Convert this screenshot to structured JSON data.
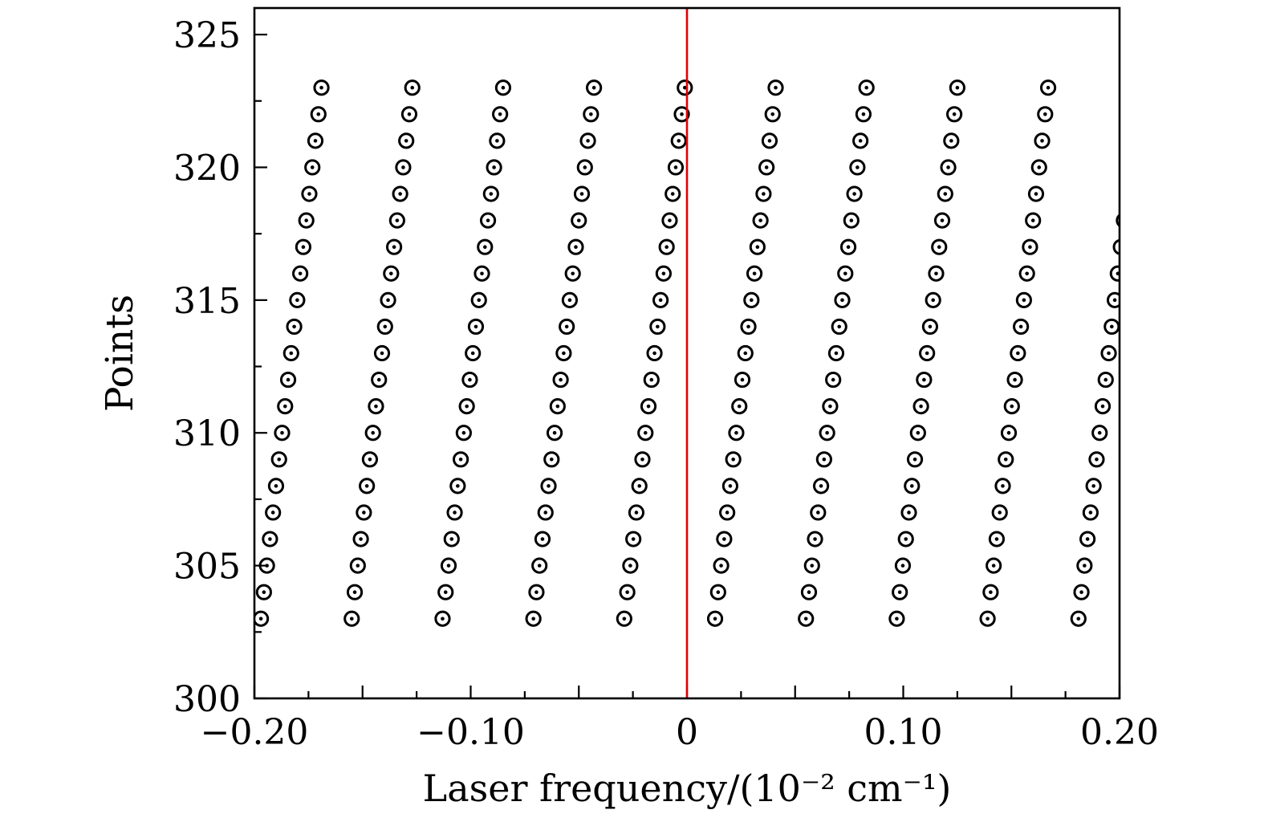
{
  "chart_data": {
    "type": "scatter",
    "xlabel": "Laser frequency/(10⁻² cm⁻¹)",
    "ylabel": "Points",
    "xlim": [
      -0.2,
      0.2
    ],
    "ylim": [
      300,
      326
    ],
    "xticks": [
      {
        "value": -0.2,
        "label": "−0.20"
      },
      {
        "value": -0.1,
        "label": "−0.10"
      },
      {
        "value": 0,
        "label": "0"
      },
      {
        "value": 0.1,
        "label": "0.10"
      },
      {
        "value": 0.2,
        "label": "0.20"
      }
    ],
    "yticks": [
      {
        "value": 300,
        "label": "300"
      },
      {
        "value": 305,
        "label": "305"
      },
      {
        "value": 310,
        "label": "310"
      },
      {
        "value": 315,
        "label": "315"
      },
      {
        "value": 320,
        "label": "320"
      },
      {
        "value": 325,
        "label": "325"
      }
    ],
    "grid": false,
    "marker": "circle-dot",
    "marker_color": "#000000",
    "reference_line": {
      "x": 0,
      "color": "#e00000"
    },
    "series": [
      {
        "x": [
          -0.197,
          -0.1956,
          -0.1942,
          -0.1928,
          -0.1914,
          -0.19,
          -0.1886,
          -0.1872,
          -0.1858,
          -0.1844,
          -0.183,
          -0.1816,
          -0.1802,
          -0.1788,
          -0.1774,
          -0.176,
          -0.1746,
          -0.1732,
          -0.1718,
          -0.1704,
          -0.169
        ],
        "y": [
          303,
          304,
          305,
          306,
          307,
          308,
          309,
          310,
          311,
          312,
          313,
          314,
          315,
          316,
          317,
          318,
          319,
          320,
          321,
          322,
          323
        ]
      },
      {
        "x": [
          -0.155,
          -0.1536,
          -0.1522,
          -0.1508,
          -0.1494,
          -0.148,
          -0.1466,
          -0.1452,
          -0.1438,
          -0.1424,
          -0.141,
          -0.1396,
          -0.1382,
          -0.1368,
          -0.1354,
          -0.134,
          -0.1326,
          -0.1312,
          -0.1298,
          -0.1284,
          -0.127
        ],
        "y": [
          303,
          304,
          305,
          306,
          307,
          308,
          309,
          310,
          311,
          312,
          313,
          314,
          315,
          316,
          317,
          318,
          319,
          320,
          321,
          322,
          323
        ]
      },
      {
        "x": [
          -0.113,
          -0.1116,
          -0.1102,
          -0.1088,
          -0.1074,
          -0.106,
          -0.1046,
          -0.1032,
          -0.1018,
          -0.1004,
          -0.099,
          -0.0976,
          -0.0962,
          -0.0948,
          -0.0934,
          -0.092,
          -0.0906,
          -0.0892,
          -0.0878,
          -0.0864,
          -0.085
        ],
        "y": [
          303,
          304,
          305,
          306,
          307,
          308,
          309,
          310,
          311,
          312,
          313,
          314,
          315,
          316,
          317,
          318,
          319,
          320,
          321,
          322,
          323
        ]
      },
      {
        "x": [
          -0.071,
          -0.0696,
          -0.0682,
          -0.0668,
          -0.0654,
          -0.064,
          -0.0626,
          -0.0612,
          -0.0598,
          -0.0584,
          -0.057,
          -0.0556,
          -0.0542,
          -0.0528,
          -0.0514,
          -0.05,
          -0.0486,
          -0.0472,
          -0.0458,
          -0.0444,
          -0.043
        ],
        "y": [
          303,
          304,
          305,
          306,
          307,
          308,
          309,
          310,
          311,
          312,
          313,
          314,
          315,
          316,
          317,
          318,
          319,
          320,
          321,
          322,
          323
        ]
      },
      {
        "x": [
          -0.029,
          -0.0276,
          -0.0262,
          -0.0248,
          -0.0234,
          -0.022,
          -0.0206,
          -0.0192,
          -0.0178,
          -0.0164,
          -0.015,
          -0.0136,
          -0.0122,
          -0.0108,
          -0.0094,
          -0.008,
          -0.0066,
          -0.0052,
          -0.0038,
          -0.0024,
          -0.001
        ],
        "y": [
          303,
          304,
          305,
          306,
          307,
          308,
          309,
          310,
          311,
          312,
          313,
          314,
          315,
          316,
          317,
          318,
          319,
          320,
          321,
          322,
          323
        ]
      },
      {
        "x": [
          0.013,
          0.0144,
          0.0158,
          0.0172,
          0.0186,
          0.02,
          0.0214,
          0.0228,
          0.0242,
          0.0256,
          0.027,
          0.0284,
          0.0298,
          0.0312,
          0.0326,
          0.034,
          0.0354,
          0.0368,
          0.0382,
          0.0396,
          0.041
        ],
        "y": [
          303,
          304,
          305,
          306,
          307,
          308,
          309,
          310,
          311,
          312,
          313,
          314,
          315,
          316,
          317,
          318,
          319,
          320,
          321,
          322,
          323
        ]
      },
      {
        "x": [
          0.055,
          0.0564,
          0.0578,
          0.0592,
          0.0606,
          0.062,
          0.0634,
          0.0648,
          0.0662,
          0.0676,
          0.069,
          0.0704,
          0.0718,
          0.0732,
          0.0746,
          0.076,
          0.0774,
          0.0788,
          0.0802,
          0.0816,
          0.083
        ],
        "y": [
          303,
          304,
          305,
          306,
          307,
          308,
          309,
          310,
          311,
          312,
          313,
          314,
          315,
          316,
          317,
          318,
          319,
          320,
          321,
          322,
          323
        ]
      },
      {
        "x": [
          0.097,
          0.0984,
          0.0998,
          0.1012,
          0.1026,
          0.104,
          0.1054,
          0.1068,
          0.1082,
          0.1096,
          0.111,
          0.1124,
          0.1138,
          0.1152,
          0.1166,
          0.118,
          0.1194,
          0.1208,
          0.1222,
          0.1236,
          0.125
        ],
        "y": [
          303,
          304,
          305,
          306,
          307,
          308,
          309,
          310,
          311,
          312,
          313,
          314,
          315,
          316,
          317,
          318,
          319,
          320,
          321,
          322,
          323
        ]
      },
      {
        "x": [
          0.139,
          0.1404,
          0.1418,
          0.1432,
          0.1446,
          0.146,
          0.1474,
          0.1488,
          0.1502,
          0.1516,
          0.153,
          0.1544,
          0.1558,
          0.1572,
          0.1586,
          0.16,
          0.1614,
          0.1628,
          0.1642,
          0.1656,
          0.167
        ],
        "y": [
          303,
          304,
          305,
          306,
          307,
          308,
          309,
          310,
          311,
          312,
          313,
          314,
          315,
          316,
          317,
          318,
          319,
          320,
          321,
          322,
          323
        ]
      },
      {
        "x": [
          0.181,
          0.1824,
          0.1838,
          0.1852,
          0.1866,
          0.188,
          0.1894,
          0.1908,
          0.1922,
          0.1936,
          0.195,
          0.1964,
          0.1978,
          0.1992,
          0.2006,
          0.202
        ],
        "y": [
          303,
          304,
          305,
          306,
          307,
          308,
          309,
          310,
          311,
          312,
          313,
          314,
          315,
          316,
          317,
          318
        ]
      }
    ]
  }
}
